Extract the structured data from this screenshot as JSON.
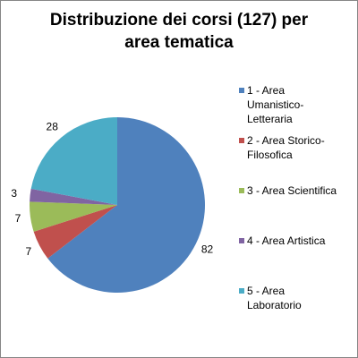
{
  "chart_data": {
    "type": "pie",
    "title_lines": [
      "Distribuzione dei corsi (127) per",
      "area tematica"
    ],
    "categories": [
      "1 - Area Umanistico-Letteraria",
      "2 - Area Storico-Filosofica",
      "3 - Area Scientifica",
      "4 - Area Artistica",
      "5 - Area Laboratorio"
    ],
    "legend_lines": [
      [
        "1 - Area",
        "Umanistico-",
        "Letteraria"
      ],
      [
        "2 - Area Storico-",
        "Filosofica"
      ],
      [
        "3 - Area Scientifica"
      ],
      [
        "4 - Area Artistica"
      ],
      [
        "5 - Area",
        "Laboratorio"
      ]
    ],
    "values": [
      82,
      7,
      7,
      3,
      28
    ],
    "data_labels": [
      "82",
      "7",
      "7",
      "3",
      "28"
    ],
    "colors": [
      "#4F81BD",
      "#C0504D",
      "#9BBB59",
      "#8064A2",
      "#4BACC6"
    ],
    "legend_position": "right",
    "start_angle": "12 o'clock",
    "direction": "clockwise"
  }
}
